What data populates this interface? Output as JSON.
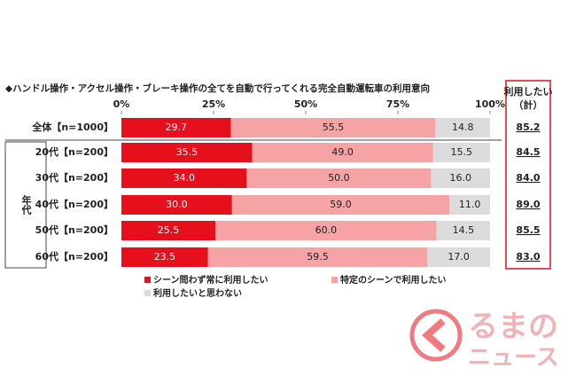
{
  "chart_data": {
    "type": "stacked-bar-horizontal",
    "title": "◆ハンドル操作・アクセル操作・ブレーキ操作の全てを自動で行ってくれる完全自動運転車の利用意向",
    "categories": [
      "全体【n=1000】",
      "20代【n=200】",
      "30代【n=200】",
      "40代【n=200】",
      "50代【n=200】",
      "60代【n=200】"
    ],
    "group_label": "年代",
    "series": [
      {
        "name": "シーン問わず常に利用したい",
        "color": "#e60f1c",
        "values": [
          29.7,
          35.5,
          34.0,
          30.0,
          25.5,
          23.5
        ],
        "value_labels": [
          "29.7",
          "35.5",
          "34.0",
          "30.0",
          "25.5",
          "23.5"
        ]
      },
      {
        "name": "特定のシーンで利用したい",
        "color": "#f5a3a5",
        "values": [
          55.5,
          49.0,
          50.0,
          59.0,
          60.0,
          59.5
        ],
        "value_labels": [
          "55.5",
          "49.0",
          "50.0",
          "59.0",
          "60.0",
          "59.5"
        ]
      },
      {
        "name": "利用したいと思わない",
        "color": "#dcdcdc",
        "values": [
          14.8,
          15.5,
          16.0,
          11.0,
          14.5,
          17.0
        ],
        "value_labels": [
          "14.8",
          "15.5",
          "16.0",
          "11.0",
          "14.5",
          "17.0"
        ]
      }
    ],
    "xlim": [
      0,
      100
    ],
    "xticks": [
      {
        "value": 0,
        "label": "0%"
      },
      {
        "value": 25,
        "label": "25%"
      },
      {
        "value": 50,
        "label": "50%"
      },
      {
        "value": 75,
        "label": "75%"
      },
      {
        "value": 100,
        "label": "100%"
      }
    ],
    "totals": {
      "header": [
        "利用したい",
        "（計）"
      ],
      "values": [
        85.2,
        84.5,
        84.0,
        89.0,
        85.5,
        83.0
      ],
      "value_labels": [
        "85.2",
        "84.5",
        "84.0",
        "89.0",
        "85.5",
        "83.0"
      ],
      "color": "#e60f1c"
    }
  },
  "logo": {
    "line1": "るまの",
    "line2": "ニュース"
  }
}
